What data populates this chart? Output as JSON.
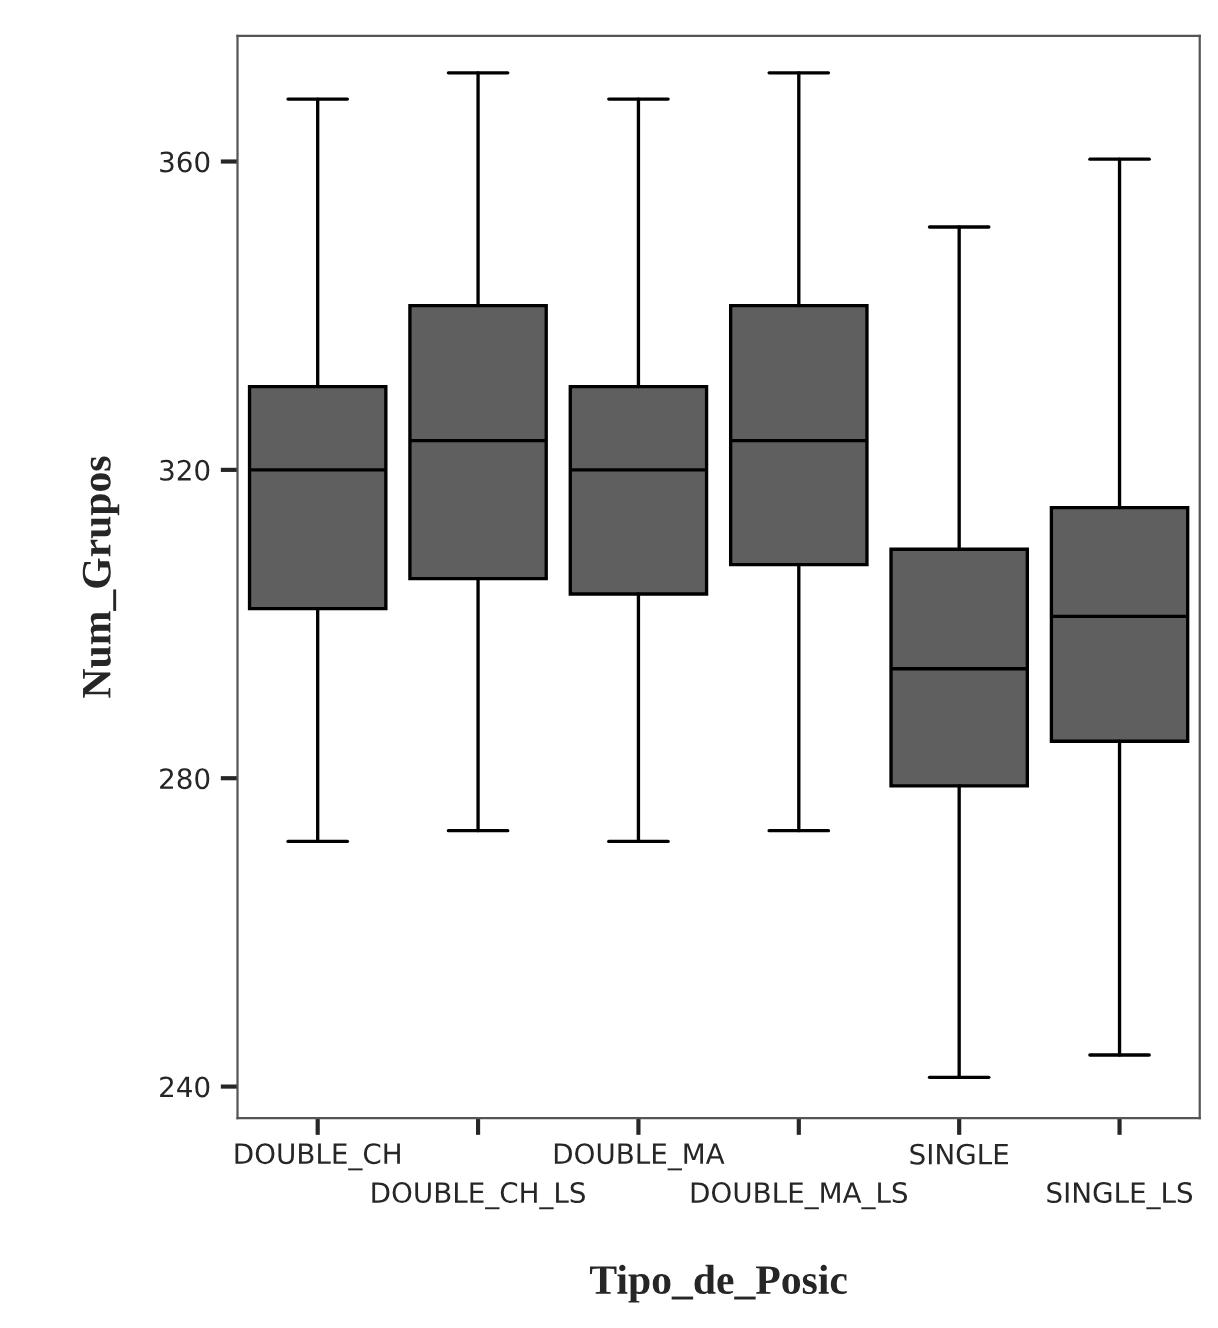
{
  "chart_data": {
    "type": "box",
    "xlabel": "Tipo_de_Posic",
    "ylabel": "Num_Grupos",
    "categories": [
      "DOUBLE_CH",
      "DOUBLE_CH_LS",
      "DOUBLE_MA",
      "DOUBLE_MA_LS",
      "SINGLE",
      "SINGLE_LS"
    ],
    "color": "#5f5f5f",
    "boxes": [
      {
        "low": 271.8,
        "q1": 302.0,
        "median": 320.0,
        "q3": 330.8,
        "high": 368.1
      },
      {
        "low": 273.2,
        "q1": 305.9,
        "median": 323.8,
        "q3": 341.3,
        "high": 371.5
      },
      {
        "low": 271.8,
        "q1": 303.9,
        "median": 320.0,
        "q3": 330.8,
        "high": 368.1
      },
      {
        "low": 273.2,
        "q1": 307.7,
        "median": 323.8,
        "q3": 341.3,
        "high": 371.5
      },
      {
        "low": 241.2,
        "q1": 279.0,
        "median": 294.2,
        "q3": 309.7,
        "high": 351.5
      },
      {
        "low": 244.1,
        "q1": 284.8,
        "median": 301.0,
        "q3": 315.1,
        "high": 360.3
      }
    ],
    "ylim": [
      235.9,
      376.3
    ],
    "yticks": [
      240,
      280,
      320,
      360
    ],
    "grid": false,
    "legend": false
  }
}
